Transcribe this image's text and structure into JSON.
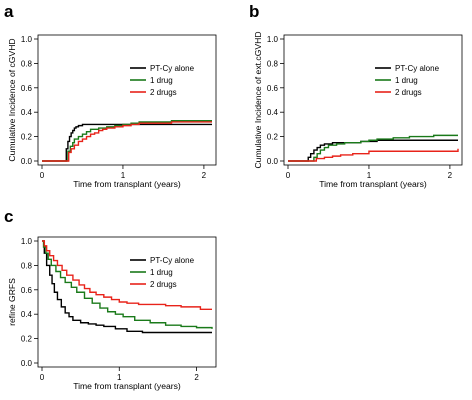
{
  "chart_data": [
    {
      "panel": "a",
      "type": "line",
      "step": true,
      "xlabel": "Time from transplant (years)",
      "ylabel": "Cumulative Incidence of cGVHD",
      "xlim": [
        0,
        2.1
      ],
      "ylim": [
        0,
        1.0
      ],
      "xticks": [
        0,
        1,
        2
      ],
      "yticks": [
        0.0,
        0.2,
        0.4,
        0.6,
        0.8,
        1.0
      ],
      "grid": false,
      "legend": "right",
      "series": [
        {
          "name": "PT-Cy alone",
          "color": "#000000",
          "x": [
            0,
            0.28,
            0.3,
            0.32,
            0.34,
            0.36,
            0.38,
            0.4,
            0.42,
            0.45,
            0.5,
            0.6,
            0.8,
            1.0,
            1.5,
            2.1
          ],
          "y": [
            0,
            0,
            0.1,
            0.16,
            0.2,
            0.23,
            0.25,
            0.27,
            0.28,
            0.29,
            0.3,
            0.3,
            0.3,
            0.3,
            0.3,
            0.3
          ]
        },
        {
          "name": "1 drug",
          "color": "#1a7a1a",
          "x": [
            0,
            0.3,
            0.32,
            0.35,
            0.38,
            0.4,
            0.45,
            0.5,
            0.55,
            0.6,
            0.7,
            0.8,
            0.9,
            1.0,
            1.1,
            1.2,
            1.4,
            1.6,
            2.1
          ],
          "y": [
            0,
            0,
            0.08,
            0.12,
            0.15,
            0.18,
            0.2,
            0.22,
            0.24,
            0.26,
            0.27,
            0.28,
            0.29,
            0.3,
            0.31,
            0.32,
            0.32,
            0.33,
            0.33
          ]
        },
        {
          "name": "2 drugs",
          "color": "#e8231a",
          "x": [
            0,
            0.3,
            0.33,
            0.36,
            0.4,
            0.45,
            0.5,
            0.55,
            0.6,
            0.65,
            0.7,
            0.75,
            0.8,
            0.9,
            1.0,
            1.1,
            1.2,
            1.4,
            1.6,
            2.1
          ],
          "y": [
            0,
            0,
            0.07,
            0.1,
            0.13,
            0.16,
            0.18,
            0.2,
            0.22,
            0.23,
            0.25,
            0.26,
            0.27,
            0.28,
            0.29,
            0.3,
            0.31,
            0.31,
            0.32,
            0.32
          ]
        }
      ]
    },
    {
      "panel": "b",
      "type": "line",
      "step": true,
      "xlabel": "Time from transplant (years)",
      "ylabel": "Cumulative Incidence of ext.cGVHD",
      "xlim": [
        0,
        2.1
      ],
      "ylim": [
        0,
        1.0
      ],
      "xticks": [
        0,
        1,
        2
      ],
      "yticks": [
        0.0,
        0.2,
        0.4,
        0.6,
        0.8,
        1.0
      ],
      "grid": false,
      "legend": "right",
      "series": [
        {
          "name": "PT-Cy alone",
          "color": "#000000",
          "x": [
            0,
            0.22,
            0.25,
            0.28,
            0.32,
            0.36,
            0.4,
            0.45,
            0.55,
            0.7,
            0.9,
            1.1,
            1.5,
            2.1
          ],
          "y": [
            0,
            0,
            0.03,
            0.06,
            0.09,
            0.11,
            0.13,
            0.14,
            0.15,
            0.15,
            0.16,
            0.17,
            0.17,
            0.17
          ]
        },
        {
          "name": "1 drug",
          "color": "#1a7a1a",
          "x": [
            0,
            0.28,
            0.32,
            0.36,
            0.4,
            0.45,
            0.5,
            0.6,
            0.7,
            0.8,
            0.9,
            1.0,
            1.1,
            1.3,
            1.5,
            1.8,
            2.1
          ],
          "y": [
            0,
            0,
            0.03,
            0.06,
            0.09,
            0.11,
            0.13,
            0.14,
            0.15,
            0.15,
            0.16,
            0.17,
            0.18,
            0.19,
            0.2,
            0.21,
            0.21
          ]
        },
        {
          "name": "2 drugs",
          "color": "#e8231a",
          "x": [
            0,
            0.3,
            0.35,
            0.45,
            0.55,
            0.65,
            0.8,
            1.0,
            2.05,
            2.1
          ],
          "y": [
            0,
            0,
            0.02,
            0.03,
            0.04,
            0.05,
            0.06,
            0.08,
            0.08,
            0.1
          ]
        }
      ]
    },
    {
      "panel": "c",
      "type": "line",
      "step": true,
      "xlabel": "Time from transplant (years)",
      "ylabel": "refine GRFS",
      "xlim": [
        0,
        2.2
      ],
      "ylim": [
        0,
        1.0
      ],
      "xticks": [
        0,
        1,
        2
      ],
      "yticks": [
        0.0,
        0.2,
        0.4,
        0.6,
        0.8,
        1.0
      ],
      "grid": false,
      "legend": "top-right",
      "series": [
        {
          "name": "PT-Cy alone",
          "color": "#000000",
          "x": [
            0,
            0.03,
            0.06,
            0.1,
            0.13,
            0.16,
            0.2,
            0.25,
            0.3,
            0.35,
            0.4,
            0.5,
            0.6,
            0.7,
            0.8,
            0.95,
            1.1,
            1.3,
            2.2
          ],
          "y": [
            1.0,
            0.9,
            0.8,
            0.72,
            0.65,
            0.58,
            0.52,
            0.46,
            0.41,
            0.38,
            0.35,
            0.33,
            0.32,
            0.31,
            0.3,
            0.28,
            0.26,
            0.25,
            0.25
          ]
        },
        {
          "name": "1 drug",
          "color": "#1a7a1a",
          "x": [
            0,
            0.02,
            0.05,
            0.08,
            0.12,
            0.18,
            0.24,
            0.3,
            0.38,
            0.45,
            0.55,
            0.65,
            0.75,
            0.85,
            0.95,
            1.05,
            1.2,
            1.4,
            1.6,
            1.8,
            2.0,
            2.2
          ],
          "y": [
            1.0,
            0.95,
            0.9,
            0.85,
            0.8,
            0.75,
            0.7,
            0.66,
            0.62,
            0.58,
            0.53,
            0.49,
            0.45,
            0.42,
            0.4,
            0.38,
            0.35,
            0.33,
            0.31,
            0.3,
            0.29,
            0.28
          ]
        },
        {
          "name": "2 drugs",
          "color": "#e8231a",
          "x": [
            0,
            0.03,
            0.06,
            0.1,
            0.15,
            0.2,
            0.26,
            0.32,
            0.4,
            0.48,
            0.55,
            0.62,
            0.7,
            0.8,
            0.9,
            1.0,
            1.1,
            1.25,
            1.4,
            1.6,
            1.8,
            2.05,
            2.2
          ],
          "y": [
            1.0,
            0.96,
            0.92,
            0.88,
            0.84,
            0.8,
            0.76,
            0.72,
            0.68,
            0.64,
            0.61,
            0.58,
            0.56,
            0.54,
            0.52,
            0.5,
            0.49,
            0.48,
            0.48,
            0.47,
            0.46,
            0.44,
            0.44
          ]
        }
      ]
    }
  ]
}
